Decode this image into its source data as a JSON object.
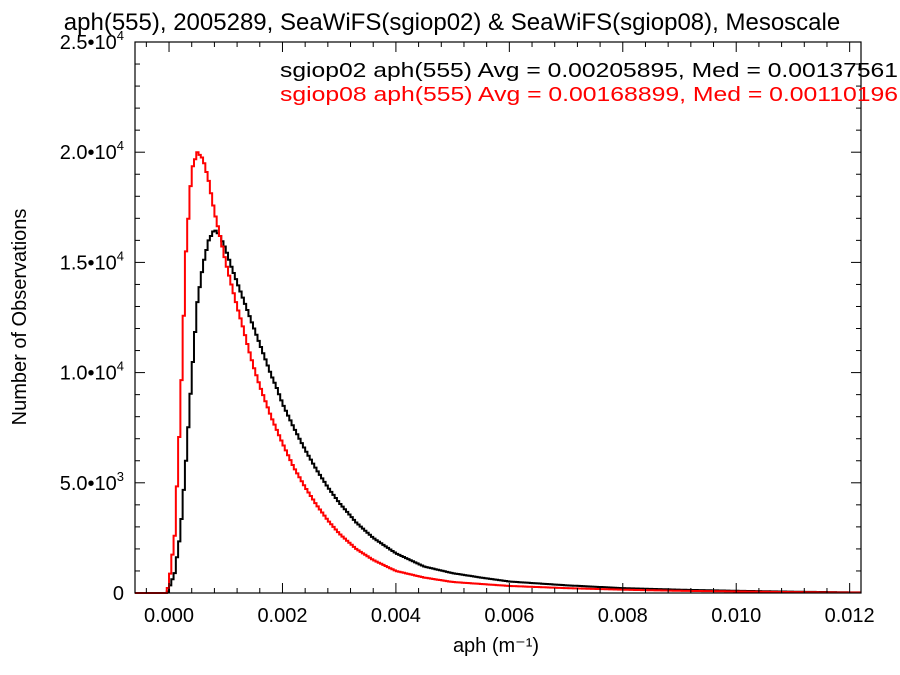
{
  "chart_data": {
    "type": "line",
    "title": "aph(555), 2005289, SeaWiFS(sgiop02) & SeaWiFS(sgiop08), Mesoscale",
    "xlabel": "aph (m⁻¹)",
    "ylabel": "Number of Observations",
    "xlim": [
      -0.0006,
      0.0122
    ],
    "ylim": [
      0,
      25000
    ],
    "x_ticks": [
      {
        "value": 0.0,
        "label": "0.000"
      },
      {
        "value": 0.002,
        "label": "0.002"
      },
      {
        "value": 0.004,
        "label": "0.004"
      },
      {
        "value": 0.006,
        "label": "0.006"
      },
      {
        "value": 0.008,
        "label": "0.008"
      },
      {
        "value": 0.01,
        "label": "0.010"
      },
      {
        "value": 0.012,
        "label": "0.012"
      }
    ],
    "y_ticks": [
      {
        "value": 0,
        "mantissa": "0",
        "exp": ""
      },
      {
        "value": 5000,
        "mantissa": "5.0•10",
        "exp": "3"
      },
      {
        "value": 10000,
        "mantissa": "1.0•10",
        "exp": "4"
      },
      {
        "value": 15000,
        "mantissa": "1.5•10",
        "exp": "4"
      },
      {
        "value": 20000,
        "mantissa": "2.0•10",
        "exp": "4"
      },
      {
        "value": 25000,
        "mantissa": "2.5•10",
        "exp": "4"
      }
    ],
    "grid": false,
    "series": [
      {
        "name": "sgiop02",
        "color": "#000000",
        "legend_text": "sgiop02 aph(555) Avg = 0.00205895, Med = 0.00137561",
        "avg": 0.00205895,
        "median": 0.00137561,
        "points": [
          [
            -3e-05,
            0
          ],
          [
            0.0001,
            900
          ],
          [
            0.0002,
            2700
          ],
          [
            0.0003,
            6000
          ],
          [
            0.0004,
            9800
          ],
          [
            0.0005,
            13200
          ],
          [
            0.0006,
            14900
          ],
          [
            0.0007,
            16000
          ],
          [
            0.0008,
            16500
          ],
          [
            0.0009,
            16200
          ],
          [
            0.001,
            15600
          ],
          [
            0.0011,
            14800
          ],
          [
            0.0012,
            14100
          ],
          [
            0.0013,
            13400
          ],
          [
            0.0014,
            12700
          ],
          [
            0.0015,
            12000
          ],
          [
            0.0016,
            11300
          ],
          [
            0.0017,
            10600
          ],
          [
            0.0018,
            9900
          ],
          [
            0.0019,
            9300
          ],
          [
            0.002,
            8600
          ],
          [
            0.0022,
            7500
          ],
          [
            0.0024,
            6500
          ],
          [
            0.0026,
            5600
          ],
          [
            0.0028,
            4800
          ],
          [
            0.003,
            4100
          ],
          [
            0.0033,
            3200
          ],
          [
            0.0036,
            2500
          ],
          [
            0.004,
            1800
          ],
          [
            0.0045,
            1200
          ],
          [
            0.005,
            900
          ],
          [
            0.0055,
            700
          ],
          [
            0.006,
            520
          ],
          [
            0.007,
            350
          ],
          [
            0.008,
            220
          ],
          [
            0.009,
            150
          ],
          [
            0.01,
            100
          ],
          [
            0.011,
            60
          ],
          [
            0.012,
            30
          ]
        ]
      },
      {
        "name": "sgiop08",
        "color": "#ff0000",
        "legend_text": "sgiop08 aph(555) Avg = 0.00168899, Med = 0.00110196",
        "avg": 0.00168899,
        "median": 0.00110196,
        "points": [
          [
            -4e-05,
            0
          ],
          [
            0.0,
            450
          ],
          [
            0.0001,
            2600
          ],
          [
            0.0002,
            8200
          ],
          [
            0.0003,
            15500
          ],
          [
            0.0004,
            19200
          ],
          [
            0.0005,
            20000
          ],
          [
            0.0006,
            19700
          ],
          [
            0.0007,
            18700
          ],
          [
            0.0008,
            17300
          ],
          [
            0.0009,
            16200
          ],
          [
            0.001,
            15000
          ],
          [
            0.0011,
            14000
          ],
          [
            0.0012,
            13000
          ],
          [
            0.0013,
            12100
          ],
          [
            0.0014,
            11100
          ],
          [
            0.0015,
            10200
          ],
          [
            0.0016,
            9400
          ],
          [
            0.0017,
            8700
          ],
          [
            0.0018,
            8000
          ],
          [
            0.0019,
            7400
          ],
          [
            0.002,
            6800
          ],
          [
            0.0022,
            5700
          ],
          [
            0.0024,
            4800
          ],
          [
            0.0026,
            4000
          ],
          [
            0.0028,
            3300
          ],
          [
            0.003,
            2700
          ],
          [
            0.0033,
            2000
          ],
          [
            0.0036,
            1500
          ],
          [
            0.004,
            1000
          ],
          [
            0.0045,
            700
          ],
          [
            0.005,
            500
          ],
          [
            0.006,
            320
          ],
          [
            0.007,
            220
          ],
          [
            0.008,
            150
          ],
          [
            0.009,
            100
          ],
          [
            0.01,
            70
          ],
          [
            0.011,
            40
          ],
          [
            0.012,
            20
          ]
        ]
      }
    ]
  }
}
